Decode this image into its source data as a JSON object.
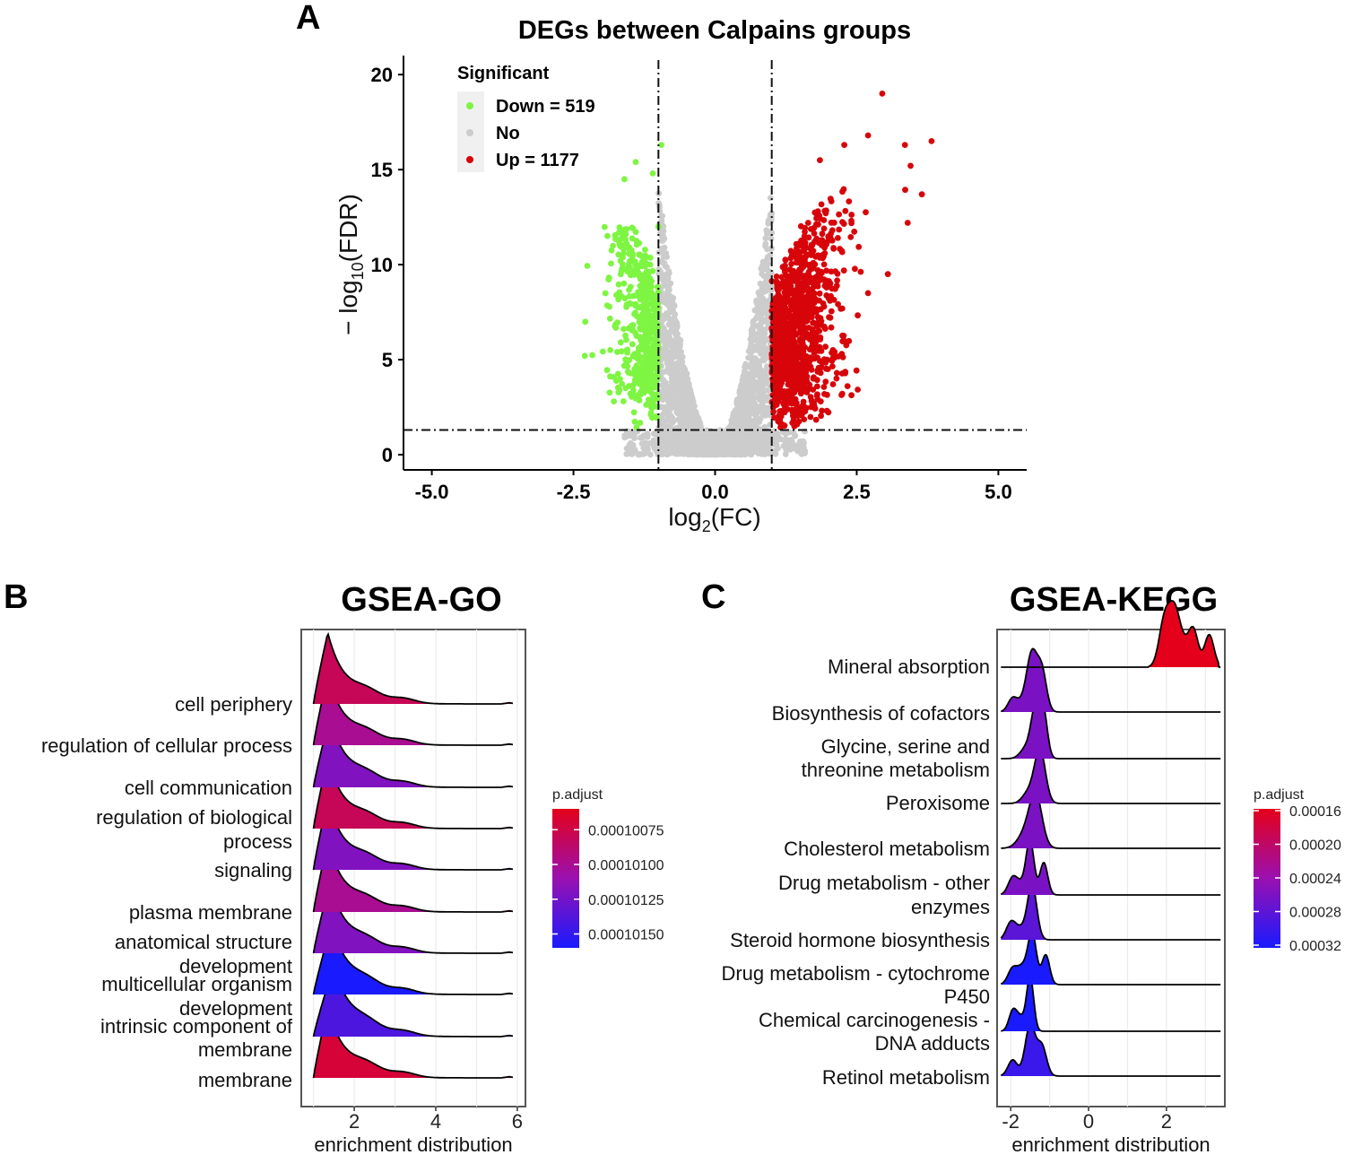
{
  "chart_data": [
    {
      "panel": "A",
      "type": "scatter",
      "title": "DEGs between Calpains groups",
      "xlabel_base": "log",
      "xlabel_sub": "2",
      "xlabel_arg": "(FC)",
      "ylabel_prefix": "− log",
      "ylabel_sub": "10",
      "ylabel_arg": "(FDR)",
      "xlim": [
        -5.5,
        5.5
      ],
      "ylim": [
        -0.8,
        21
      ],
      "xticks": [
        "-5.0",
        "-2.5",
        "0.0",
        "2.5",
        "5.0"
      ],
      "xtick_values": [
        -5,
        -2.5,
        0,
        2.5,
        5
      ],
      "yticks": [
        "0",
        "5",
        "10",
        "15",
        "20"
      ],
      "ytick_values": [
        0,
        5,
        10,
        15,
        20
      ],
      "thresholds": {
        "fc": [
          -1,
          1
        ],
        "fdr": 1.3
      },
      "legend": {
        "title": "Significant",
        "entries": [
          {
            "label": "Down = 519",
            "color": "#7ef542"
          },
          {
            "label": "No",
            "color": "#cccccc"
          },
          {
            "label": "Up = 1177",
            "color": "#d7050a"
          }
        ]
      },
      "series": [
        {
          "name": "Down",
          "count": 519,
          "color": "#7ef542",
          "x_range": [
            -2.3,
            -1.0
          ],
          "y_range": [
            1.3,
            16.3
          ]
        },
        {
          "name": "No",
          "color": "#cccccc",
          "x_range": [
            -1.0,
            1.0
          ],
          "y_range": [
            0,
            14.3
          ]
        },
        {
          "name": "Up",
          "count": 1177,
          "color": "#d7050a",
          "x_range": [
            1.0,
            3.85
          ],
          "y_range": [
            1.3,
            19.0
          ]
        }
      ],
      "highlight_points": [
        {
          "x": 2.95,
          "y": 19.0
        },
        {
          "x": 3.82,
          "y": 16.5
        },
        {
          "x": 2.7,
          "y": 16.8
        },
        {
          "x": 3.35,
          "y": 16.3
        },
        {
          "x": 2.28,
          "y": 16.3
        },
        {
          "x": 3.45,
          "y": 15.2
        },
        {
          "x": 1.85,
          "y": 15.5
        },
        {
          "x": 3.65,
          "y": 13.7
        },
        {
          "x": 3.4,
          "y": 12.2
        },
        {
          "x": 3.05,
          "y": 9.5
        },
        {
          "x": 2.7,
          "y": 8.5
        },
        {
          "x": -0.95,
          "y": 16.3
        },
        {
          "x": -1.4,
          "y": 15.4
        },
        {
          "x": -1.6,
          "y": 14.5
        },
        {
          "x": -1.0,
          "y": 12.0
        },
        {
          "x": -2.3,
          "y": 5.2
        },
        {
          "x": -1.1,
          "y": 14.8
        }
      ]
    },
    {
      "panel": "B",
      "type": "ridgeline",
      "title": "GSEA-GO",
      "xlabel": "enrichment distribution",
      "xlim": [
        0.7,
        6.2
      ],
      "xticks": [
        "2",
        "4",
        "6"
      ],
      "xtick_values": [
        2,
        4,
        6
      ],
      "colorbar": {
        "title": "p.adjust",
        "ticks": [
          "0.00010075",
          "0.00010100",
          "0.00010125",
          "0.00010150"
        ],
        "range": [
          0.0001006,
          0.0001016
        ],
        "tick_values": [
          0.00010075,
          0.000101,
          0.00010125,
          0.0001015
        ]
      },
      "categories": [
        "cell periphery",
        "regulation of cellular process",
        "cell communication",
        "regulation of biological process",
        "signaling",
        "plasma membrane",
        "anatomical structure development",
        "multicellular organism development",
        "intrinsic component of membrane",
        "membrane"
      ],
      "p_adjust": [
        0.0001008,
        0.000101,
        0.0001012,
        0.0001008,
        0.0001012,
        0.000101,
        0.0001012,
        0.0001016,
        0.0001014,
        0.0001007
      ],
      "peak_x": [
        1.35,
        1.35,
        1.4,
        1.35,
        1.35,
        1.35,
        1.4,
        1.45,
        1.5,
        1.35
      ]
    },
    {
      "panel": "C",
      "type": "ridgeline",
      "title": "GSEA-KEGG",
      "xlabel": "enrichment distribution",
      "xlim": [
        -2.35,
        3.5
      ],
      "xticks": [
        "-2",
        "0",
        "2"
      ],
      "xtick_values": [
        -2,
        0,
        2
      ],
      "colorbar": {
        "title": "p.adjust",
        "ticks": [
          "0.00016",
          "0.00020",
          "0.00024",
          "0.00028",
          "0.00032"
        ],
        "range": [
          0.00016,
          0.00032
        ],
        "tick_values": [
          0.00016,
          0.0002,
          0.00024,
          0.00028,
          0.00032
        ]
      },
      "categories": [
        "Mineral absorption",
        "Biosynthesis of cofactors",
        "Glycine, serine and threonine metabolism",
        "Peroxisome",
        "Cholesterol metabolism",
        "Drug metabolism - other enzymes",
        "Steroid hormone biosynthesis",
        "Drug metabolism - cytochrome P450",
        "Chemical carcinogenesis - DNA adducts",
        "Retinol metabolism"
      ],
      "p_adjust": [
        0.00016,
        0.00026,
        0.00026,
        0.00026,
        0.00026,
        0.00026,
        0.00028,
        0.00032,
        0.00032,
        0.0003
      ]
    }
  ],
  "panel_B_labels": [
    {
      "lines": [
        "cell periphery"
      ]
    },
    {
      "lines": [
        "regulation of cellular process"
      ]
    },
    {
      "lines": [
        "cell communication"
      ]
    },
    {
      "lines": [
        "regulation of biological",
        "process"
      ]
    },
    {
      "lines": [
        "signaling"
      ]
    },
    {
      "lines": [
        "plasma membrane"
      ]
    },
    {
      "lines": [
        "anatomical structure",
        "development"
      ]
    },
    {
      "lines": [
        "multicellular organism",
        "development"
      ]
    },
    {
      "lines": [
        "intrinsic component of",
        "membrane"
      ]
    },
    {
      "lines": [
        "membrane"
      ]
    }
  ],
  "panel_C_labels": [
    {
      "lines": [
        "Mineral absorption"
      ]
    },
    {
      "lines": [
        "Biosynthesis of cofactors"
      ]
    },
    {
      "lines": [
        "Glycine, serine and",
        "threonine metabolism"
      ]
    },
    {
      "lines": [
        "Peroxisome"
      ]
    },
    {
      "lines": [
        "Cholesterol metabolism"
      ]
    },
    {
      "lines": [
        "Drug metabolism - other",
        "enzymes"
      ]
    },
    {
      "lines": [
        "Steroid hormone biosynthesis"
      ]
    },
    {
      "lines": [
        "Drug metabolism - cytochrome",
        "P450"
      ]
    },
    {
      "lines": [
        "Chemical carcinogenesis -",
        "DNA adducts"
      ]
    },
    {
      "lines": [
        "Retinol metabolism"
      ]
    }
  ]
}
